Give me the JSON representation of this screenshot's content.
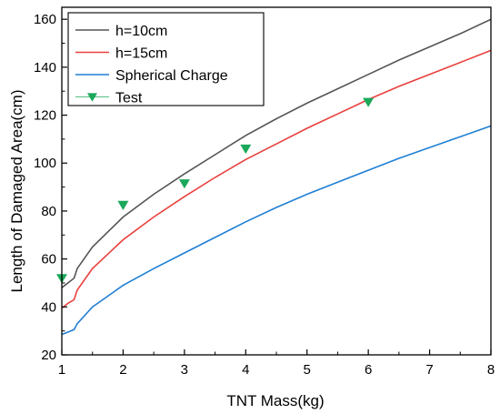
{
  "chart_data": {
    "type": "line",
    "xlabel": "TNT Mass(kg)",
    "ylabel": "Length of Damaged Area(cm)",
    "xlim": [
      1,
      8
    ],
    "ylim": [
      20,
      165
    ],
    "x_ticks": [
      1,
      2,
      3,
      4,
      5,
      6,
      7,
      8
    ],
    "y_ticks": [
      20,
      40,
      60,
      80,
      100,
      120,
      140,
      160
    ],
    "grid": false,
    "legend_position": "top-left",
    "series": [
      {
        "name": "h=10cm",
        "kind": "line",
        "color": "#555555",
        "x": [
          1.0,
          1.1,
          1.2,
          1.25,
          1.5,
          2,
          2.5,
          3,
          3.5,
          4,
          4.5,
          5,
          5.5,
          6,
          6.5,
          7,
          7.5,
          8
        ],
        "y": [
          48,
          50,
          52,
          56,
          65,
          77.5,
          87,
          95.5,
          103.5,
          111.5,
          118.5,
          125,
          131,
          137,
          143,
          148.5,
          154,
          160
        ]
      },
      {
        "name": "h=15cm",
        "kind": "line",
        "color": "#e8403c",
        "x": [
          1.0,
          1.1,
          1.2,
          1.25,
          1.5,
          2,
          2.5,
          3,
          3.5,
          4,
          4.5,
          5,
          5.5,
          6,
          6.5,
          7,
          7.5,
          8
        ],
        "y": [
          39.5,
          41.5,
          43,
          47,
          56,
          68,
          77.5,
          86,
          94,
          101.5,
          108,
          114.5,
          120.5,
          126.5,
          132,
          137,
          142,
          147
        ]
      },
      {
        "name": "Spherical Charge",
        "kind": "line",
        "color": "#1f7fd4",
        "x": [
          1.0,
          1.1,
          1.2,
          1.25,
          1.5,
          2,
          2.5,
          3,
          3.5,
          4,
          4.5,
          5,
          5.5,
          6,
          6.5,
          7,
          7.5,
          8
        ],
        "y": [
          28.5,
          29.5,
          30.5,
          33,
          40,
          49,
          56,
          62.5,
          69,
          75.5,
          81.5,
          87,
          92,
          97,
          102,
          106.5,
          111,
          115.5
        ]
      },
      {
        "name": "Test",
        "kind": "scatter",
        "marker": "triangle-down",
        "color": "#1aa85a",
        "x": [
          1,
          2,
          3,
          4,
          6
        ],
        "y": [
          52,
          82.5,
          91.5,
          106,
          125.5
        ]
      }
    ]
  }
}
